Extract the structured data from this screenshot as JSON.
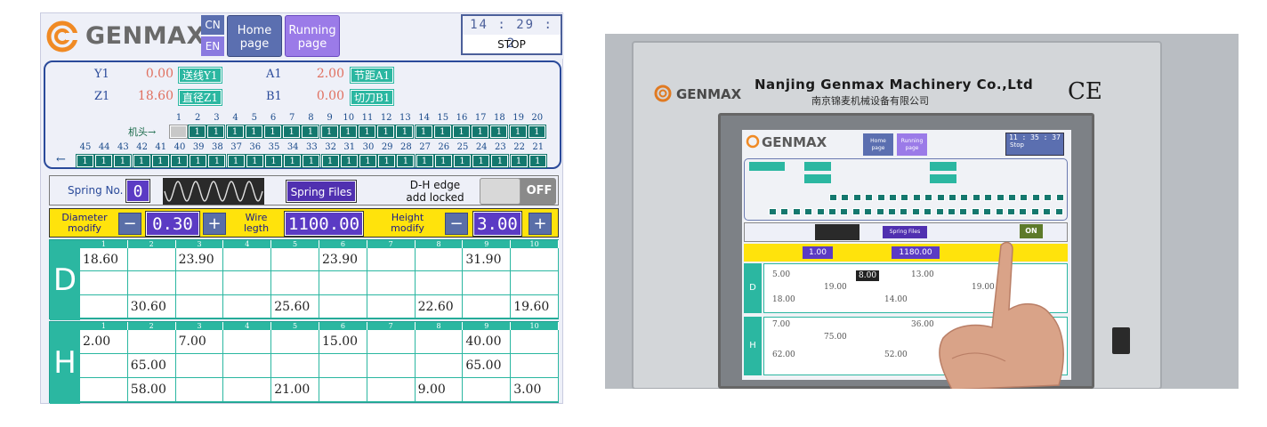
{
  "header": {
    "brand": "GENMAX",
    "lang_cn": "CN",
    "lang_en": "EN",
    "home_btn": "Home page",
    "running_btn": "Running page",
    "time": "14 : 29 : 2",
    "status": "STOP"
  },
  "axes": {
    "y1": {
      "label": "Y1",
      "value": "0.00",
      "btn": "送线Y1"
    },
    "z1": {
      "label": "Z1",
      "value": "18.60",
      "btn": "直径Z1"
    },
    "a1": {
      "label": "A1",
      "value": "2.00",
      "btn": "节距A1"
    },
    "b1": {
      "label": "B1",
      "value": "0.00",
      "btn": "切刀B1"
    },
    "head_label": "机头→",
    "back_arrow": "←",
    "top_nums": [
      "1",
      "2",
      "3",
      "4",
      "5",
      "6",
      "7",
      "8",
      "9",
      "10",
      "11",
      "12",
      "13",
      "14",
      "15",
      "16",
      "17",
      "18",
      "19",
      "20"
    ],
    "top_cells": [
      "",
      "1",
      "1",
      "1",
      "1",
      "1",
      "1",
      "1",
      "1",
      "1",
      "1",
      "1",
      "1",
      "1",
      "1",
      "1",
      "1",
      "1",
      "1",
      "1"
    ],
    "bot_nums": [
      "45",
      "44",
      "43",
      "42",
      "41",
      "40",
      "39",
      "38",
      "37",
      "36",
      "35",
      "34",
      "33",
      "32",
      "31",
      "30",
      "29",
      "28",
      "27",
      "26",
      "25",
      "24",
      "23",
      "22",
      "21"
    ],
    "bot_cells": [
      "1",
      "1",
      "1",
      "1",
      "1",
      "1",
      "1",
      "1",
      "1",
      "1",
      "1",
      "1",
      "1",
      "1",
      "1",
      "1",
      "1",
      "1",
      "1",
      "1",
      "1",
      "1",
      "1",
      "1",
      "1"
    ]
  },
  "spring": {
    "label": "Spring No.",
    "number": "0",
    "files_btn": "Spring Files",
    "dh_label_1": "D-H edge",
    "dh_label_2": "add locked",
    "toggle": "OFF"
  },
  "modify": {
    "diameter_1": "Diameter",
    "diameter_2": "modify",
    "diameter_value": "0.30",
    "wire_1": "Wire",
    "wire_2": "legth",
    "wire_value": "1100.00",
    "height_1": "Height",
    "height_2": "modify",
    "height_value": "3.00",
    "minus": "−",
    "plus": "+"
  },
  "table_d": {
    "label": "D",
    "cols": [
      "1",
      "2",
      "3",
      "4",
      "5",
      "6",
      "7",
      "8",
      "9",
      "10"
    ],
    "rows": [
      [
        "18.60",
        "",
        "23.90",
        "",
        "",
        "23.90",
        "",
        "",
        "31.90",
        ""
      ],
      [
        "",
        "",
        "",
        "",
        "",
        "",
        "",
        "",
        "",
        ""
      ],
      [
        "",
        "30.60",
        "",
        "",
        "25.60",
        "",
        "",
        "22.60",
        "",
        "19.60"
      ]
    ]
  },
  "table_h": {
    "label": "H",
    "cols": [
      "1",
      "2",
      "3",
      "4",
      "5",
      "6",
      "7",
      "8",
      "9",
      "10"
    ],
    "rows": [
      [
        "2.00",
        "",
        "7.00",
        "",
        "",
        "15.00",
        "",
        "",
        "40.00",
        ""
      ],
      [
        "",
        "65.00",
        "",
        "",
        "",
        "",
        "",
        "",
        "65.00",
        ""
      ],
      [
        "",
        "58.00",
        "",
        "",
        "21.00",
        "",
        "",
        "9.00",
        "",
        "3.00"
      ]
    ]
  },
  "photo": {
    "company": "Nanjing Genmax Machinery Co.,Ltd",
    "company_cn": "南京锦麦机械设备有限公司",
    "brand": "GENMAX",
    "ce": "CE",
    "time": "11 : 35 : 37",
    "status": "Stop",
    "home": "Home page",
    "running": "Running page",
    "spring_files": "Spring Files",
    "toggle": "ON",
    "diameter_value": "1.00",
    "wire_value": "1180.00",
    "values": [
      "8.00",
      "13.00",
      "5.00",
      "19.00",
      "19.00",
      "18.00",
      "14.00",
      "7.00",
      "36.00",
      "75.00",
      "62.00",
      "52.00"
    ],
    "colors": {
      "accent": "#2bb7a1",
      "purple": "#5b3bc4",
      "yellow": "#ffe30c"
    }
  }
}
